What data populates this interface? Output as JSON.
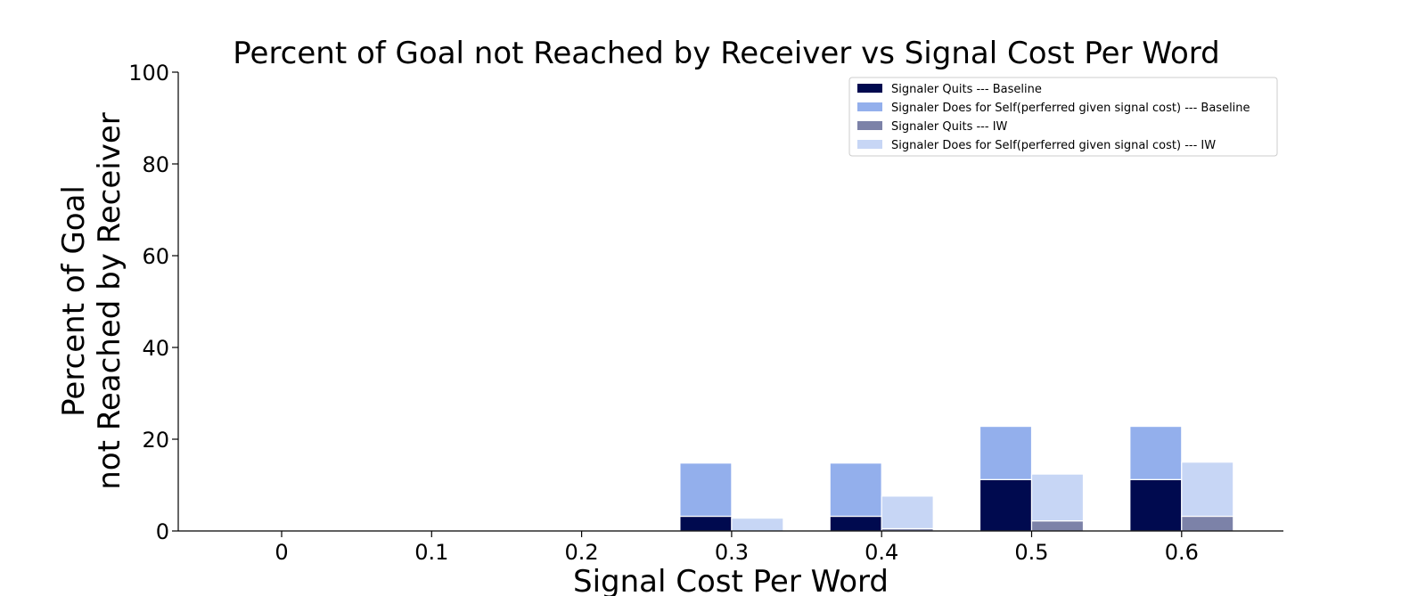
{
  "chart_data": {
    "type": "bar",
    "title": "Percent of Goal not Reached by Receiver vs Signal Cost Per Word",
    "xlabel": "Signal Cost Per Word",
    "ylabel_lines": [
      "Percent of Goal",
      "not Reached by Receiver"
    ],
    "categories": [
      "0",
      "0.1",
      "0.2",
      "0.3",
      "0.4",
      "0.5",
      "0.6"
    ],
    "yticks": [
      "0",
      "20",
      "40",
      "60",
      "80",
      "100"
    ],
    "ylim": [
      0,
      100
    ],
    "stacked": true,
    "grid": false,
    "legend_position": "top-right",
    "groups": [
      {
        "name": "Baseline",
        "series": [
          {
            "name": "Signaler Quits --- Baseline",
            "color": "#000a4f",
            "values": [
              0,
              0,
              0,
              3.2,
              3.2,
              11.2,
              11.2
            ]
          },
          {
            "name": "Signaler Does for Self(perferred given signal cost) --- Baseline",
            "color": "#93afec",
            "values": [
              0,
              0,
              0,
              11.6,
              11.6,
              11.6,
              11.6
            ]
          }
        ]
      },
      {
        "name": "IW",
        "series": [
          {
            "name": "Signaler Quits --- IW",
            "color": "#7c82a8",
            "values": [
              0,
              0,
              0,
              0,
              0.5,
              2.2,
              3.2
            ]
          },
          {
            "name": "Signaler Does for Self(perferred given signal cost) --- IW",
            "color": "#c7d6f5",
            "values": [
              0,
              0,
              0,
              2.8,
              7.1,
              10.2,
              11.8
            ]
          }
        ]
      }
    ]
  }
}
